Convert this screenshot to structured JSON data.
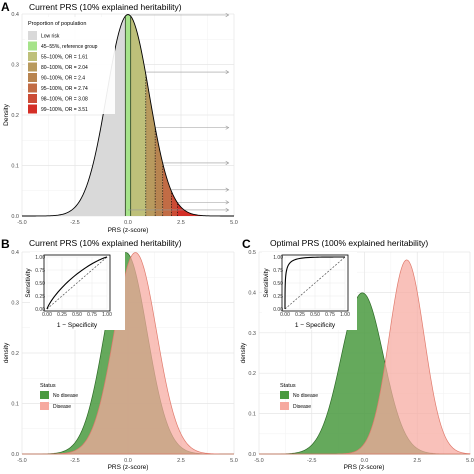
{
  "chart_data": [
    {
      "panel_label": "A",
      "type": "area",
      "title": "Current PRS (10% explained heritability)",
      "xlabel": "PRS (z-score)",
      "ylabel": "Density",
      "xlim": [
        -5.0,
        5.0
      ],
      "ylim": [
        0.0,
        0.4
      ],
      "x_ticks": [
        -5.0,
        -2.5,
        0.0,
        2.5,
        5.0
      ],
      "x_tick_labels": [
        "-5.0",
        "-2.5",
        "0.0",
        "2.5",
        "5.0"
      ],
      "y_ticks": [
        0.0,
        0.1,
        0.2,
        0.3,
        0.4
      ],
      "y_tick_labels": [
        "0.0",
        "0.1",
        "0.2",
        "0.3",
        "0.4"
      ],
      "distribution": {
        "mean": 0,
        "sd": 1
      },
      "legend_title": "Proportion of population",
      "legend_position": "top-left",
      "grid": true,
      "series": [
        {
          "name": "Low risk",
          "color": "#d9d9d9",
          "from_percentile": 0,
          "to_percentile": 45
        },
        {
          "name": "45–55%, reference group",
          "color": "#a6e38a",
          "from_percentile": 45,
          "to_percentile": 55
        },
        {
          "name": "55–100%, OR = 1.61",
          "color": "#bec07a",
          "from_percentile": 55,
          "to_percentile": 80
        },
        {
          "name": "80–100%, OR = 2.04",
          "color": "#b89a5e",
          "from_percentile": 80,
          "to_percentile": 90
        },
        {
          "name": "90–100%, OR = 2.4",
          "color": "#b88450",
          "from_percentile": 90,
          "to_percentile": 95
        },
        {
          "name": "95–100%, OR = 2.74",
          "color": "#c26c45",
          "from_percentile": 95,
          "to_percentile": 98
        },
        {
          "name": "98–100%, OR = 3.08",
          "color": "#cc4b35",
          "from_percentile": 98,
          "to_percentile": 99
        },
        {
          "name": "99–100%, OR = 3.51",
          "color": "#d42e26",
          "from_percentile": 99,
          "to_percentile": 100
        }
      ],
      "boundary_z": [
        -0.13,
        0.13,
        0.84,
        1.28,
        1.64,
        2.05,
        2.33
      ],
      "arrow_y": [
        0.398,
        0.285,
        0.175,
        0.105,
        0.052,
        0.027,
        0.012
      ]
    },
    {
      "panel_label": "B",
      "type": "area",
      "title": "Current PRS (10% explained heritability)",
      "xlabel": "PRS (z-score)",
      "ylabel": "density",
      "xlim": [
        -5.0,
        5.0
      ],
      "ylim": [
        0.0,
        0.4
      ],
      "x_ticks": [
        -5.0,
        -2.5,
        0.0,
        2.5,
        5.0
      ],
      "x_tick_labels": [
        "-5.0",
        "-2.5",
        "0.0",
        "2.5",
        "5.0"
      ],
      "y_ticks": [
        0.0,
        0.1,
        0.2,
        0.3,
        0.4
      ],
      "y_tick_labels": [
        "0.0",
        "0.1",
        "0.2",
        "0.3",
        "0.4"
      ],
      "legend_title": "Status",
      "legend_position": "bottom-left",
      "grid": true,
      "series": [
        {
          "name": "No disease",
          "color": "#4a9a3f",
          "mean": -0.1,
          "sd": 1.0
        },
        {
          "name": "Disease",
          "color": "#f6a99f",
          "mean": 0.35,
          "sd": 1.0
        }
      ],
      "inset": {
        "xlabel": "1 − Specificity",
        "ylabel": "Sensitivity",
        "ticks": [
          0.0,
          0.25,
          0.5,
          0.75,
          1.0
        ],
        "tick_labels": [
          "0.00",
          "0.25",
          "0.50",
          "0.75",
          "1.00"
        ],
        "roc_separation": 0.45
      }
    },
    {
      "panel_label": "C",
      "type": "area",
      "title": "Optimal PRS (100% explained heritability)",
      "xlabel": "PRS (z-score)",
      "ylabel": "density",
      "xlim": [
        -5.0,
        5.0
      ],
      "ylim": [
        0.0,
        0.5
      ],
      "x_ticks": [
        -5.0,
        -2.5,
        0.0,
        2.5,
        5.0
      ],
      "x_tick_labels": [
        "-5.0",
        "-2.5",
        "0.0",
        "2.5",
        "5.0"
      ],
      "y_ticks": [
        0.0,
        0.1,
        0.2,
        0.3,
        0.4,
        0.5
      ],
      "y_tick_labels": [
        "0.0",
        "0.1",
        "0.2",
        "0.3",
        "0.4",
        "0.5"
      ],
      "legend_title": "Status",
      "legend_position": "bottom-left",
      "grid": true,
      "series": [
        {
          "name": "No disease",
          "color": "#4a9a3f",
          "mean": -0.1,
          "sd": 1.0
        },
        {
          "name": "Disease",
          "color": "#f6a99f",
          "mean": 2.0,
          "sd": 0.83
        }
      ],
      "inset": {
        "xlabel": "1 − Specificity",
        "ylabel": "Sensitivity",
        "ticks": [
          0.0,
          0.25,
          0.5,
          0.75,
          1.0
        ],
        "tick_labels": [
          "0.00",
          "0.25",
          "0.50",
          "0.75",
          "1.00"
        ],
        "roc_separation": 2.6
      }
    }
  ]
}
